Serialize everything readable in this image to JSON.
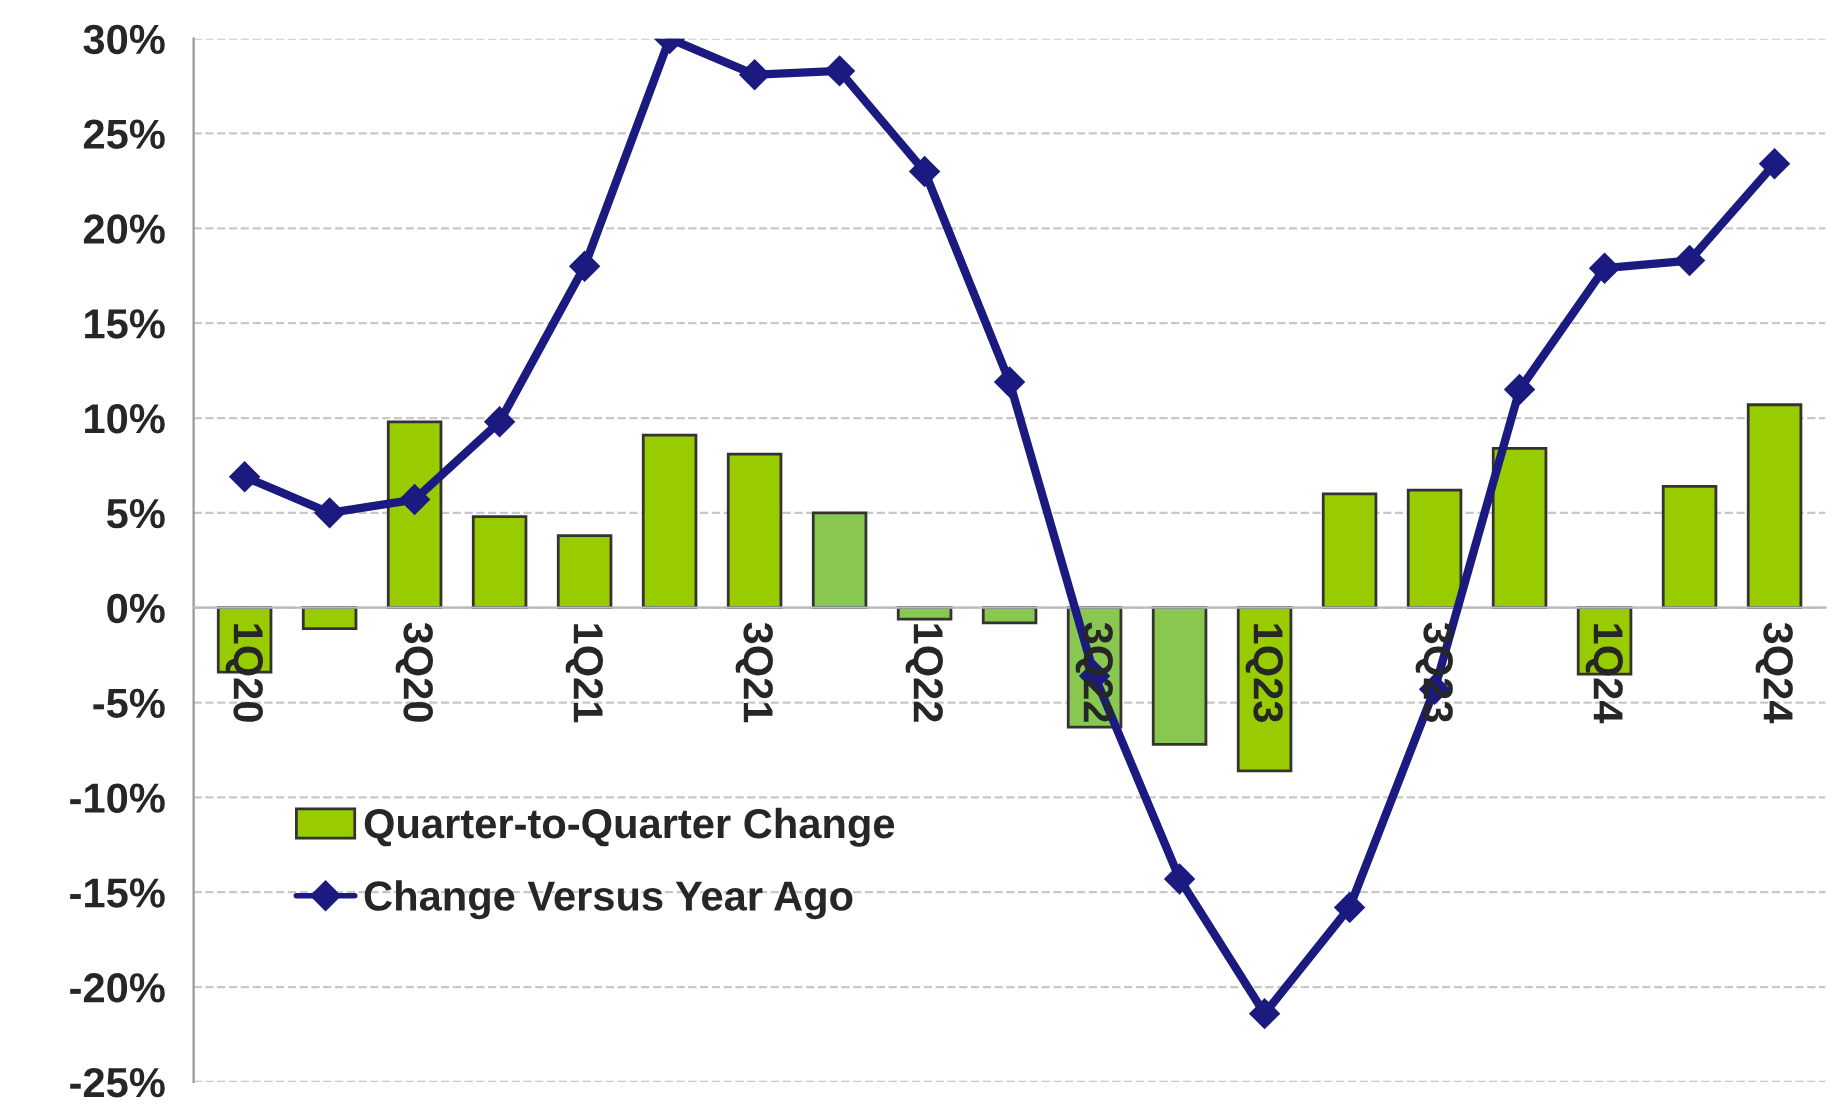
{
  "chart_data": {
    "type": "bar",
    "categories": [
      "1Q20",
      null,
      "3Q20",
      null,
      "1Q21",
      null,
      "3Q21",
      null,
      "1Q22",
      null,
      "3Q22",
      null,
      "1Q23",
      null,
      "3Q23",
      null,
      "1Q24",
      null,
      "3Q24"
    ],
    "series": [
      {
        "name": "Quarter-to-Quarter Change",
        "color": "#99cc00",
        "colors": [
          "#99cc00",
          "#99cc00",
          "#99cc00",
          "#99cc00",
          "#99cc00",
          "#99cc00",
          "#99cc00",
          "#88c850",
          "#88c850",
          "#88c850",
          "#88c850",
          "#88c850",
          "#99cc00",
          "#99cc00",
          "#99cc00",
          "#99cc00",
          "#99cc00",
          "#99cc00",
          "#99cc00"
        ],
        "values": [
          -3.4,
          -1.1,
          9.8,
          4.8,
          3.8,
          9.1,
          8.1,
          5.0,
          -0.6,
          -0.8,
          -6.3,
          -7.2,
          -8.6,
          6.0,
          6.2,
          8.4,
          -3.5,
          6.4,
          10.7
        ]
      },
      {
        "name": "Change Versus Year Ago",
        "type": "line",
        "color": "#1a1a80",
        "marker": "diamond",
        "values": [
          6.9,
          5.0,
          5.7,
          9.8,
          18.0,
          30.0,
          28.1,
          28.3,
          23.0,
          11.9,
          -3.6,
          -14.3,
          -21.4,
          -15.8,
          -4.3,
          11.5,
          17.9,
          18.3,
          23.4
        ]
      }
    ],
    "ylim": [
      -25,
      30
    ],
    "yticks": [
      {
        "value": -25,
        "label": "-25%"
      },
      {
        "value": -20,
        "label": "-20%"
      },
      {
        "value": -15,
        "label": "-15%"
      },
      {
        "value": -10,
        "label": "-10%"
      },
      {
        "value": -5,
        "label": "-5%"
      },
      {
        "value": 0,
        "label": "0%"
      },
      {
        "value": 5,
        "label": "5%"
      },
      {
        "value": 10,
        "label": "10%"
      },
      {
        "value": 15,
        "label": "15%"
      },
      {
        "value": 20,
        "label": "20%"
      },
      {
        "value": 25,
        "label": "25%"
      },
      {
        "value": 30,
        "label": "30%"
      }
    ],
    "grid": "y",
    "legend": "bottom left"
  }
}
